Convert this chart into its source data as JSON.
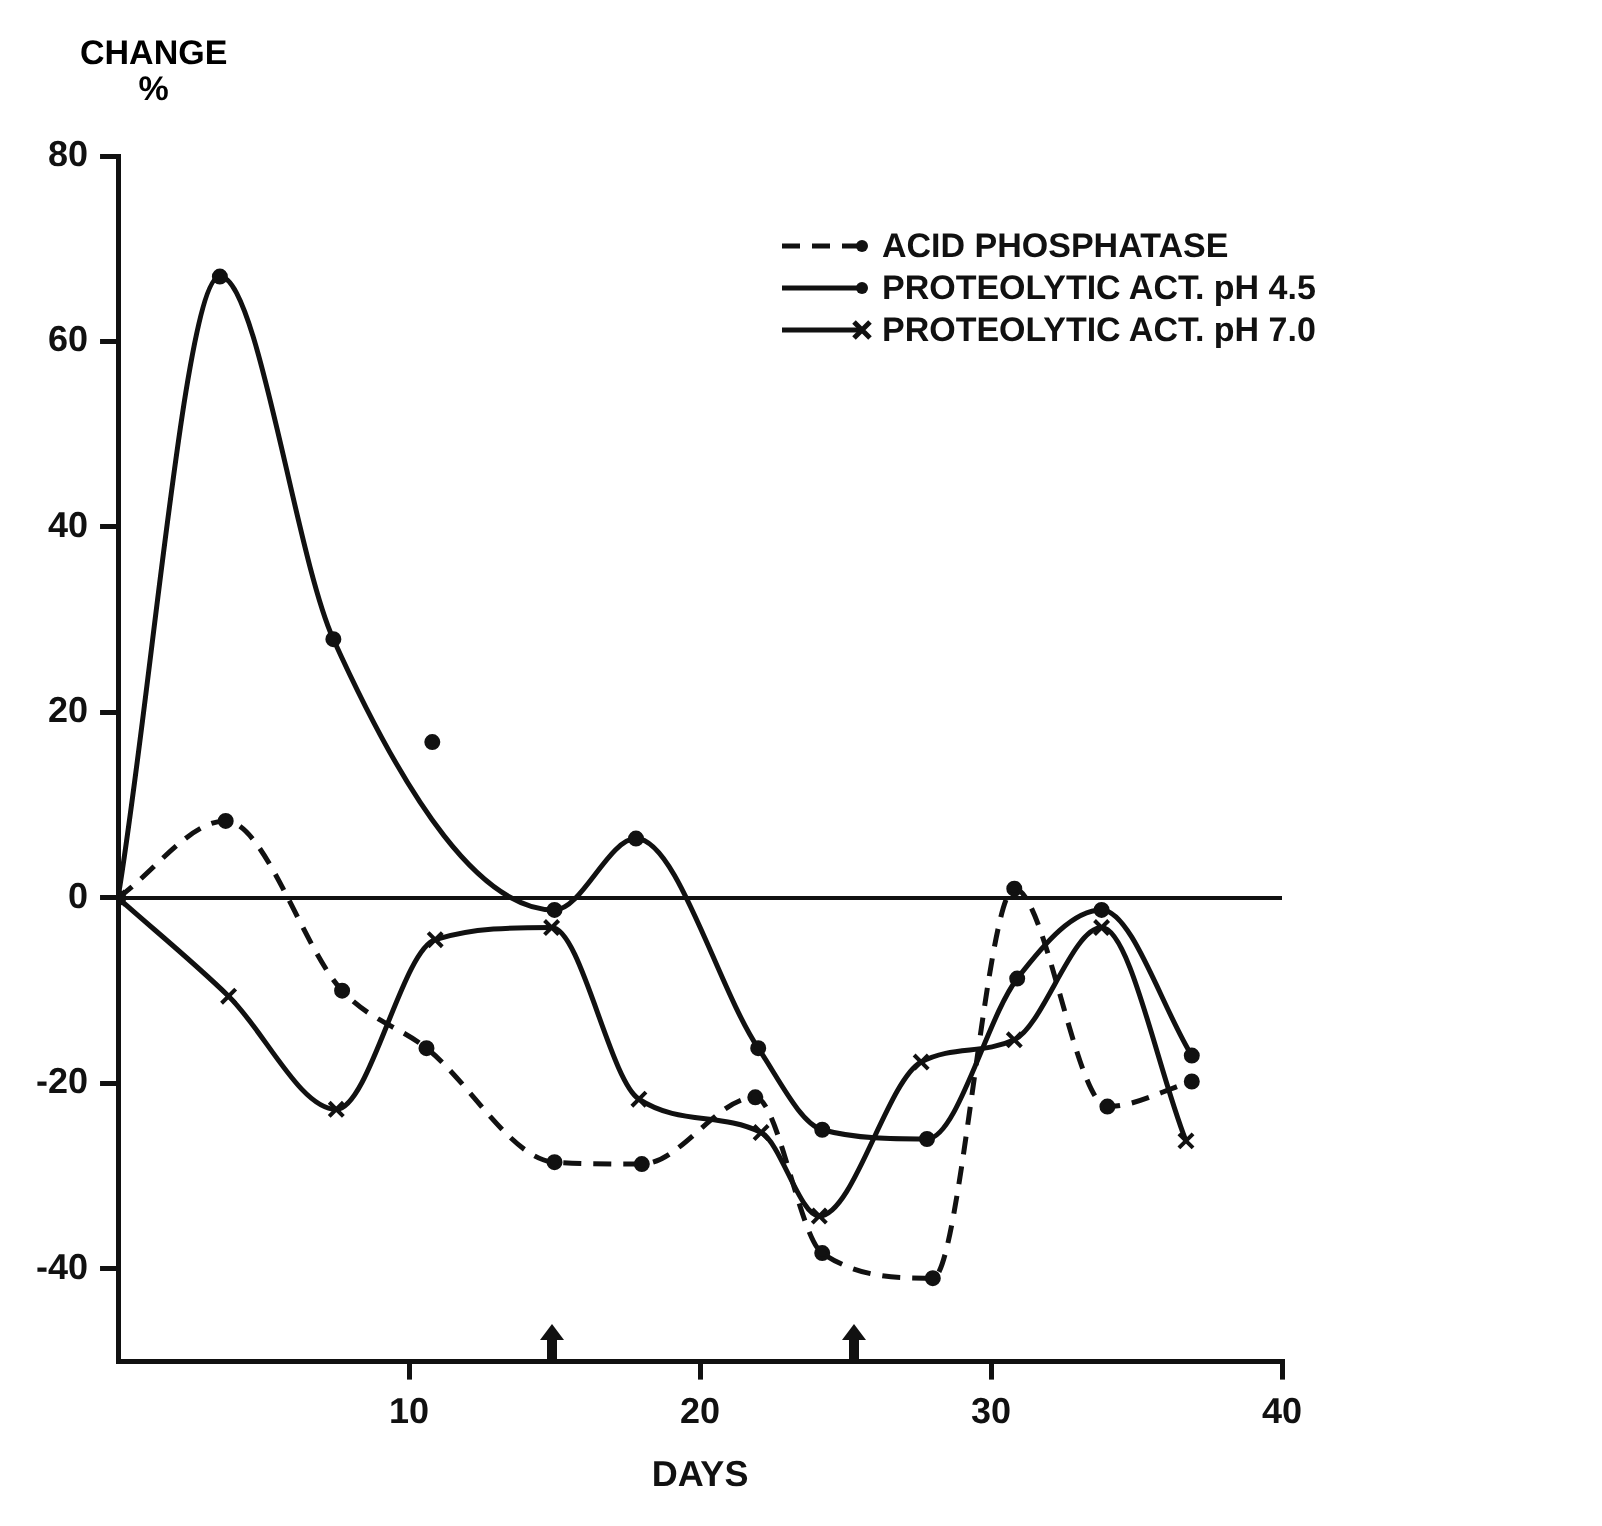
{
  "chart_data": {
    "type": "line",
    "xlabel": "DAYS",
    "ylabel": "CHANGE\n%",
    "xlim": [
      0,
      40
    ],
    "xticks": [
      10,
      20,
      30,
      40
    ],
    "ylim": [
      -50,
      80
    ],
    "yticks": [
      -40,
      -20,
      0,
      20,
      40,
      60,
      80
    ],
    "grid": false,
    "legend": "top right",
    "ref_lines": [
      {
        "axis": "y",
        "value": 0,
        "color": "#111111"
      }
    ],
    "series": [
      {
        "name": "ACID PHOSPHATASE",
        "color": "#111111",
        "line_style": "dashed",
        "marker": "circle",
        "x": [
          0,
          3.7,
          7.7,
          10.6,
          15,
          18,
          21.9,
          24.2,
          28,
          30.8,
          34,
          36.9
        ],
        "values": [
          0,
          8.3,
          -10,
          -16.2,
          -28.5,
          -28.7,
          -21.5,
          -38.3,
          -41,
          1,
          -22.5,
          -19.8
        ]
      },
      {
        "name": "PROTEOLYTIC ACT. pH 4.5",
        "color": "#111111",
        "line_style": "solid",
        "marker": "circle",
        "x": [
          0,
          3.5,
          7.4,
          15,
          17.8,
          22,
          24.2,
          27.8,
          30.9,
          33.8,
          36.9
        ],
        "values": [
          0,
          67,
          27.9,
          -1.3,
          6.4,
          -16.2,
          -25,
          -26,
          -8.7,
          -1.3,
          -17
        ]
      },
      {
        "name": "PROTEOLYTIC ACT. pH 7.0",
        "color": "#111111",
        "line_style": "solid",
        "marker": "cross",
        "x": [
          0,
          3.8,
          7.5,
          10.9,
          14.9,
          17.9,
          22.1,
          24.1,
          27.6,
          30.8,
          33.8,
          36.7
        ],
        "values": [
          0,
          -10.6,
          -22.8,
          -4.5,
          -3.2,
          -21.7,
          -25.3,
          -34.3,
          -17.7,
          -15.3,
          -3.2,
          -26.2
        ]
      },
      {
        "type": "scatter",
        "color": "#111111",
        "marker": "circle",
        "x": [
          10.8
        ],
        "values": [
          16.8
        ]
      }
    ]
  }
}
